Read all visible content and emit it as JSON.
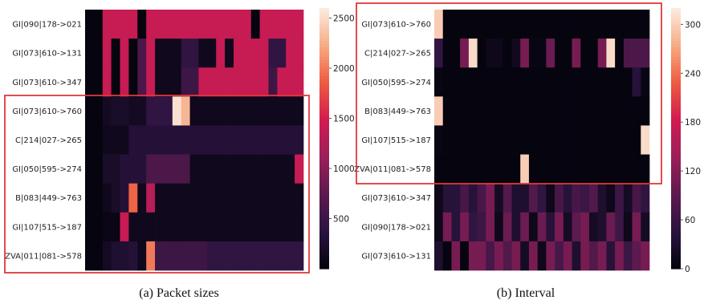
{
  "colors": {
    "highlight_box": "#e0383a",
    "colormap_stops": [
      "#05040f",
      "#2c1440",
      "#5e1a4f",
      "#9c1f5a",
      "#d21a51",
      "#ee5a3f",
      "#f6aa82",
      "#fbe9dd"
    ]
  },
  "chart_data": [
    {
      "type": "heatmap",
      "caption": "(a) Packet sizes",
      "rows": [
        "GI|090|178->021",
        "GI|073|610->131",
        "GI|073|610->347",
        "GI|073|610->760",
        "C|214|027->265",
        "GI|050|595->274",
        "B|083|449->763",
        "GI|107|515->187",
        "ZVA|011|081->578"
      ],
      "n_cols": 25,
      "vmin": 0,
      "vmax": 2600,
      "colorbar_ticks": [
        500,
        1000,
        1500,
        2000,
        2500
      ],
      "highlighted_rows": [
        3,
        8
      ],
      "values": [
        [
          0,
          0,
          1400,
          1400,
          1400,
          1400,
          0,
          1400,
          1400,
          1400,
          1400,
          1400,
          1400,
          1400,
          1400,
          1400,
          1400,
          1400,
          1400,
          0,
          1400,
          1400,
          1400,
          1400,
          1400
        ],
        [
          0,
          0,
          1400,
          0,
          1400,
          0,
          600,
          1400,
          100,
          100,
          100,
          400,
          400,
          100,
          100,
          1400,
          100,
          1400,
          1400,
          1400,
          1400,
          400,
          400,
          1400,
          1400
        ],
        [
          0,
          0,
          1400,
          0,
          1400,
          0,
          600,
          1400,
          100,
          100,
          100,
          500,
          500,
          1400,
          1400,
          1400,
          1400,
          1400,
          1400,
          1400,
          1400,
          500,
          1400,
          1400,
          1400
        ],
        [
          0,
          0,
          150,
          200,
          200,
          150,
          150,
          400,
          400,
          400,
          2550,
          2300,
          100,
          100,
          100,
          100,
          100,
          100,
          100,
          100,
          100,
          100,
          100,
          100,
          100
        ],
        [
          0,
          0,
          100,
          100,
          100,
          300,
          300,
          300,
          300,
          300,
          300,
          300,
          300,
          300,
          300,
          300,
          300,
          300,
          300,
          300,
          300,
          300,
          300,
          300,
          300
        ],
        [
          0,
          0,
          200,
          200,
          300,
          300,
          300,
          600,
          600,
          600,
          600,
          600,
          100,
          100,
          100,
          100,
          100,
          100,
          100,
          100,
          100,
          100,
          100,
          100,
          1400
        ],
        [
          0,
          0,
          100,
          200,
          300,
          1900,
          100,
          1300,
          100,
          100,
          100,
          100,
          100,
          100,
          100,
          100,
          100,
          100,
          100,
          100,
          100,
          100,
          100,
          100,
          100
        ],
        [
          0,
          0,
          50,
          50,
          1400,
          100,
          100,
          100,
          100,
          100,
          100,
          100,
          100,
          100,
          100,
          100,
          100,
          100,
          100,
          100,
          100,
          100,
          100,
          100,
          100
        ],
        [
          0,
          0,
          150,
          250,
          250,
          300,
          100,
          2000,
          500,
          500,
          500,
          500,
          500,
          500,
          400,
          400,
          400,
          400,
          400,
          400,
          400,
          400,
          400,
          400,
          400
        ]
      ]
    },
    {
      "type": "heatmap",
      "caption": "(b) Interval",
      "rows": [
        "GI|073|610->760",
        "C|214|027->265",
        "GI|050|595->274",
        "B|083|449->763",
        "GI|107|515->187",
        "ZVA|011|081->578",
        "GI|073|610->347",
        "GI|090|178->021",
        "GI|073|610->131"
      ],
      "n_cols": 25,
      "vmin": 0,
      "vmax": 320,
      "colorbar_ticks": [
        0,
        60,
        120,
        180,
        240,
        300
      ],
      "highlighted_rows": [
        0,
        5
      ],
      "values": [
        [
          300,
          0,
          0,
          0,
          0,
          0,
          0,
          0,
          0,
          0,
          0,
          0,
          0,
          0,
          0,
          0,
          0,
          0,
          0,
          0,
          0,
          0,
          0,
          0,
          0
        ],
        [
          50,
          0,
          0,
          110,
          310,
          0,
          10,
          10,
          0,
          15,
          110,
          5,
          5,
          100,
          0,
          0,
          110,
          0,
          0,
          110,
          310,
          0,
          75,
          75,
          75
        ],
        [
          5,
          0,
          0,
          0,
          0,
          0,
          0,
          0,
          0,
          0,
          0,
          0,
          0,
          0,
          0,
          0,
          0,
          0,
          0,
          0,
          0,
          0,
          0,
          40,
          5
        ],
        [
          300,
          0,
          0,
          0,
          0,
          0,
          0,
          0,
          0,
          0,
          0,
          0,
          0,
          0,
          0,
          0,
          0,
          0,
          0,
          0,
          0,
          0,
          0,
          0,
          0
        ],
        [
          5,
          0,
          0,
          0,
          0,
          0,
          0,
          0,
          0,
          0,
          0,
          0,
          0,
          0,
          0,
          0,
          0,
          0,
          0,
          0,
          0,
          0,
          0,
          0,
          310
        ],
        [
          0,
          0,
          0,
          0,
          0,
          0,
          0,
          0,
          0,
          0,
          300,
          0,
          0,
          0,
          0,
          0,
          0,
          0,
          0,
          0,
          0,
          0,
          0,
          0,
          0
        ],
        [
          10,
          40,
          40,
          70,
          40,
          70,
          110,
          20,
          80,
          30,
          30,
          80,
          50,
          10,
          70,
          40,
          70,
          60,
          80,
          30,
          10,
          60,
          20,
          70,
          50
        ],
        [
          10,
          110,
          40,
          110,
          50,
          60,
          110,
          10,
          100,
          30,
          100,
          10,
          100,
          40,
          110,
          20,
          90,
          110,
          20,
          30,
          100,
          60,
          10,
          110,
          20
        ],
        [
          30,
          0,
          110,
          0,
          110,
          110,
          70,
          110,
          80,
          110,
          20,
          110,
          10,
          110,
          70,
          110,
          30,
          110,
          80,
          110,
          40,
          110,
          60,
          90,
          110
        ]
      ]
    }
  ]
}
